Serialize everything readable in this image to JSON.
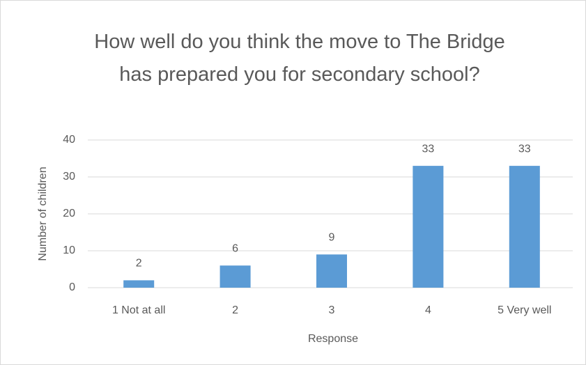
{
  "chart_data": {
    "type": "bar",
    "title": "How well do you think the move to The Bridge has prepared you for secondary school?",
    "categories": [
      "1 Not at all",
      "2",
      "3",
      "4",
      "5 Very well"
    ],
    "values": [
      2,
      6,
      9,
      33,
      33
    ],
    "color": "#5b9bd5",
    "ylim": [
      0,
      40
    ],
    "yticks": [
      0,
      10,
      20,
      30,
      40
    ],
    "grid": true,
    "xlabel": "Response",
    "ylabel": "Number of children"
  }
}
